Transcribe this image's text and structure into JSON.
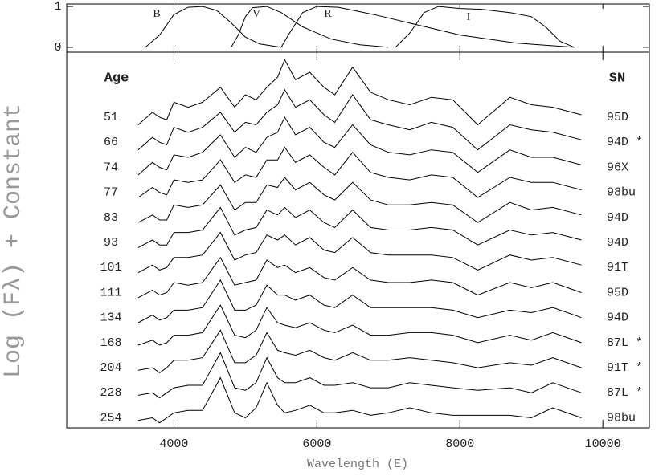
{
  "chart_data": [
    {
      "type": "line",
      "xlim": [
        2500,
        10650
      ],
      "ylim": [
        -0.12,
        1.06
      ],
      "yticks": [
        0,
        1
      ],
      "series": [
        {
          "name": "B",
          "color": "#000000",
          "x": [
            3600,
            3800,
            4000,
            4200,
            4400,
            4600,
            4800,
            5000,
            5200,
            5500
          ],
          "values": [
            0,
            0.3,
            0.8,
            0.98,
            1.0,
            0.9,
            0.6,
            0.25,
            0.08,
            0
          ]
        },
        {
          "name": "V",
          "color": "#000000",
          "x": [
            4800,
            4900,
            5000,
            5100,
            5300,
            5500,
            5800,
            6200,
            6600,
            7000
          ],
          "values": [
            0,
            0.3,
            0.75,
            0.97,
            1.0,
            0.85,
            0.5,
            0.2,
            0.06,
            0
          ]
        },
        {
          "name": "R",
          "color": "#000000",
          "x": [
            5500,
            5600,
            5800,
            6000,
            6300,
            6800,
            7400,
            8000,
            8800,
            9600
          ],
          "values": [
            0,
            0.3,
            0.85,
            1.0,
            0.98,
            0.8,
            0.55,
            0.3,
            0.1,
            0
          ]
        },
        {
          "name": "I",
          "color": "#000000",
          "x": [
            7100,
            7300,
            7500,
            7700,
            8000,
            8300,
            8700,
            9000,
            9200,
            9400,
            9600
          ],
          "values": [
            0,
            0.35,
            0.85,
            1.0,
            0.95,
            0.93,
            0.85,
            0.75,
            0.5,
            0.15,
            0
          ]
        }
      ]
    },
    {
      "type": "line",
      "xlabel": "Wavelength (E)",
      "ylabel": "Log (Fλ) + Constant",
      "left_header": "Age",
      "right_header": "SN",
      "xlim": [
        2500,
        10650
      ],
      "ylim": [
        0,
        15
      ],
      "xticks": [
        4000,
        6000,
        8000,
        10000
      ],
      "x": [
        3500,
        3700,
        3800,
        3900,
        4000,
        4200,
        4400,
        4650,
        4850,
        5000,
        5150,
        5300,
        5450,
        5550,
        5700,
        5900,
        6100,
        6250,
        6500,
        6750,
        7000,
        7300,
        7600,
        7900,
        8250,
        8700,
        9000,
        9300,
        9700
      ],
      "series": [
        {
          "name": "95D",
          "age": 51,
          "color": "#000000",
          "values": [
            12.1,
            12.6,
            12.4,
            12.3,
            13.0,
            12.8,
            13.0,
            13.6,
            12.8,
            13.3,
            13.1,
            13.6,
            14.0,
            14.7,
            13.9,
            14.2,
            13.6,
            13.3,
            14.4,
            13.4,
            13.1,
            12.9,
            13.2,
            13.1,
            12.1,
            13.2,
            12.9,
            12.8,
            12.5
          ]
        },
        {
          "name": "94D *",
          "age": 66,
          "color": "#000000",
          "values": [
            11.1,
            11.6,
            11.4,
            11.3,
            12.0,
            11.8,
            12.0,
            12.6,
            11.8,
            12.2,
            12.1,
            12.6,
            12.9,
            13.5,
            12.8,
            13.1,
            12.5,
            12.2,
            13.3,
            12.3,
            12.1,
            11.9,
            12.2,
            12.0,
            11.1,
            12.1,
            11.9,
            11.8,
            11.5
          ]
        },
        {
          "name": "96X",
          "age": 74,
          "color": "#000000",
          "values": [
            10.1,
            10.6,
            10.4,
            10.3,
            10.9,
            10.8,
            11.0,
            11.7,
            10.8,
            11.2,
            11.0,
            11.6,
            11.8,
            12.4,
            11.7,
            12.0,
            11.4,
            11.2,
            12.1,
            11.3,
            11.0,
            10.9,
            11.1,
            11.0,
            10.2,
            11.1,
            10.8,
            10.8,
            10.5
          ]
        },
        {
          "name": "98bu",
          "age": 77,
          "color": "#000000",
          "values": [
            9.2,
            9.6,
            9.4,
            9.3,
            9.9,
            9.8,
            9.9,
            10.7,
            9.8,
            10.1,
            10.0,
            10.7,
            10.7,
            11.2,
            10.6,
            10.9,
            10.4,
            10.1,
            11.0,
            10.2,
            10.0,
            9.9,
            10.1,
            10.0,
            9.2,
            10.0,
            9.8,
            9.8,
            9.5
          ]
        },
        {
          "name": "94D",
          "age": 83,
          "color": "#000000",
          "values": [
            8.2,
            8.5,
            8.3,
            8.3,
            8.9,
            8.8,
            8.9,
            9.7,
            8.7,
            9.0,
            9.0,
            9.7,
            9.6,
            10.0,
            9.5,
            9.8,
            9.3,
            9.1,
            9.8,
            9.1,
            8.9,
            8.9,
            9.0,
            8.9,
            8.2,
            9.0,
            8.7,
            8.8,
            8.5
          ]
        },
        {
          "name": "94D",
          "age": 93,
          "color": "#000000",
          "values": [
            7.2,
            7.5,
            7.3,
            7.3,
            7.8,
            7.8,
            7.9,
            8.8,
            7.7,
            7.9,
            8.0,
            8.7,
            8.5,
            8.8,
            8.4,
            8.7,
            8.2,
            8.0,
            8.7,
            8.0,
            7.9,
            7.9,
            8.0,
            7.9,
            7.3,
            7.9,
            7.7,
            7.8,
            7.5
          ]
        },
        {
          "name": "91T",
          "age": 101,
          "color": "#000000",
          "values": [
            6.2,
            6.5,
            6.3,
            6.4,
            6.8,
            6.8,
            6.9,
            7.8,
            6.7,
            6.9,
            7.0,
            7.7,
            7.5,
            7.7,
            7.3,
            7.6,
            7.1,
            7.0,
            7.6,
            7.0,
            6.9,
            6.9,
            6.9,
            6.8,
            6.3,
            6.9,
            6.7,
            6.8,
            6.5
          ]
        },
        {
          "name": "95D",
          "age": 111,
          "color": "#000000",
          "values": [
            5.2,
            5.5,
            5.3,
            5.4,
            5.8,
            5.7,
            5.8,
            6.8,
            5.7,
            5.8,
            5.9,
            6.7,
            6.4,
            6.5,
            6.2,
            6.4,
            6.0,
            5.9,
            6.4,
            5.9,
            5.8,
            5.8,
            5.9,
            5.8,
            5.3,
            5.8,
            5.6,
            5.8,
            5.4
          ]
        },
        {
          "name": "94D",
          "age": 134,
          "color": "#000000",
          "values": [
            4.2,
            4.5,
            4.3,
            4.4,
            4.7,
            4.7,
            4.8,
            5.9,
            4.7,
            4.7,
            4.9,
            5.7,
            5.3,
            5.3,
            5.1,
            5.3,
            4.9,
            4.8,
            5.3,
            4.8,
            4.8,
            4.8,
            4.8,
            4.7,
            4.4,
            4.7,
            4.6,
            4.8,
            4.4
          ]
        },
        {
          "name": "87L *",
          "age": 168,
          "color": "#000000",
          "values": [
            3.3,
            3.5,
            3.3,
            3.4,
            3.7,
            3.7,
            3.8,
            4.9,
            3.7,
            3.6,
            3.9,
            4.8,
            4.2,
            4.1,
            4.0,
            4.2,
            3.9,
            3.8,
            4.1,
            3.7,
            3.7,
            3.8,
            3.8,
            3.7,
            3.4,
            3.7,
            3.5,
            3.8,
            3.4
          ]
        },
        {
          "name": "91T *",
          "age": 204,
          "color": "#000000",
          "values": [
            2.3,
            2.4,
            2.2,
            2.4,
            2.7,
            2.7,
            2.8,
            3.9,
            2.6,
            2.6,
            2.9,
            3.8,
            3.1,
            3.0,
            2.9,
            3.1,
            2.8,
            2.7,
            3.0,
            2.7,
            2.7,
            2.8,
            2.7,
            2.6,
            2.4,
            2.6,
            2.5,
            2.8,
            2.4
          ]
        },
        {
          "name": "87L *",
          "age": 228,
          "color": "#000000",
          "values": [
            1.3,
            1.4,
            1.2,
            1.4,
            1.6,
            1.7,
            1.7,
            3.0,
            1.6,
            1.5,
            1.8,
            2.8,
            2.0,
            1.8,
            1.8,
            2.0,
            1.7,
            1.7,
            1.8,
            1.6,
            1.6,
            1.8,
            1.7,
            1.6,
            1.5,
            1.6,
            1.4,
            1.8,
            1.4
          ]
        },
        {
          "name": "98bu",
          "age": 254,
          "color": "#000000",
          "values": [
            0.3,
            0.4,
            0.2,
            0.4,
            0.6,
            0.7,
            0.7,
            2.0,
            0.6,
            0.4,
            0.8,
            1.8,
            0.9,
            0.6,
            0.7,
            0.9,
            0.6,
            0.6,
            0.7,
            0.5,
            0.6,
            0.8,
            0.6,
            0.5,
            0.5,
            0.5,
            0.4,
            0.8,
            0.4
          ]
        }
      ]
    }
  ]
}
